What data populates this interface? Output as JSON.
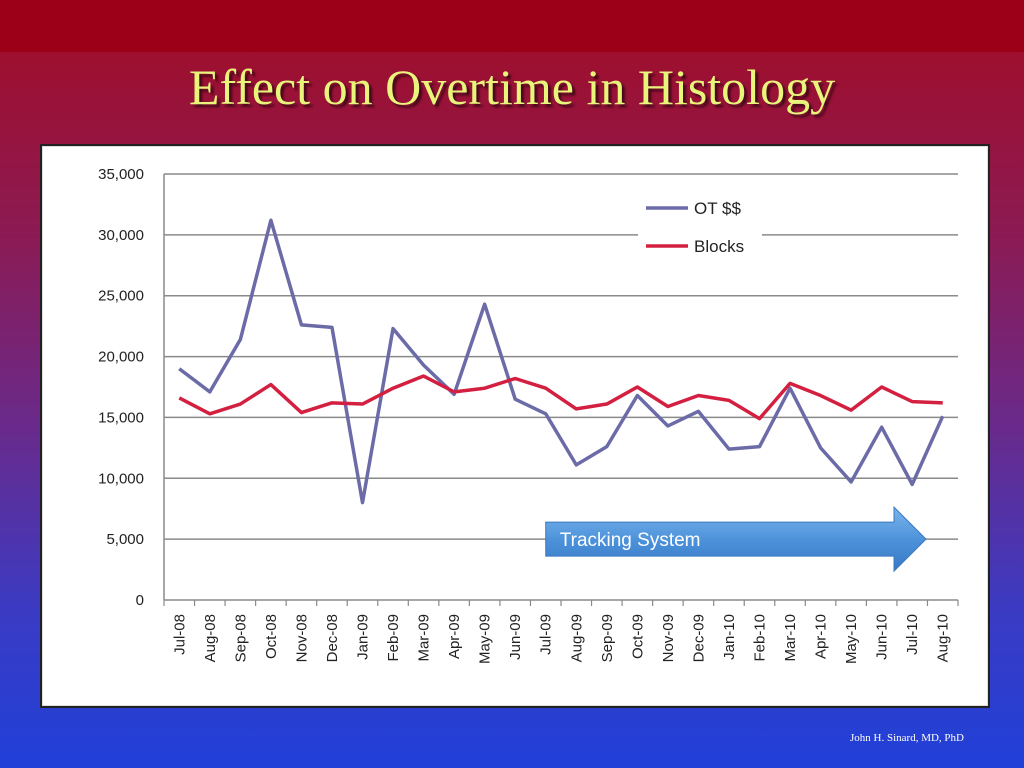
{
  "slide": {
    "title": "Effect on Overtime in Histology",
    "credit": "John H. Sinard, MD, PhD"
  },
  "chart_data": {
    "type": "line",
    "categories": [
      "Jul-08",
      "Aug-08",
      "Sep-08",
      "Oct-08",
      "Nov-08",
      "Dec-08",
      "Jan-09",
      "Feb-09",
      "Mar-09",
      "Apr-09",
      "May-09",
      "Jun-09",
      "Jul-09",
      "Aug-09",
      "Sep-09",
      "Oct-09",
      "Nov-09",
      "Dec-09",
      "Jan-10",
      "Feb-10",
      "Mar-10",
      "Apr-10",
      "May-10",
      "Jun-10",
      "Jul-10",
      "Aug-10"
    ],
    "series": [
      {
        "name": "OT $$",
        "color": "#6b6ba8",
        "values": [
          19000,
          17100,
          21400,
          31200,
          22600,
          22400,
          8000,
          22300,
          19300,
          16900,
          24300,
          16500,
          15300,
          11100,
          12600,
          16800,
          14300,
          15500,
          12400,
          12600,
          17400,
          12500,
          9700,
          14200,
          9500,
          15100
        ]
      },
      {
        "name": "Blocks",
        "color": "#d42040",
        "values": [
          16600,
          15300,
          16100,
          17700,
          15400,
          16200,
          16100,
          17400,
          18400,
          17100,
          17400,
          18200,
          17400,
          15700,
          16100,
          17500,
          15900,
          16800,
          16400,
          14900,
          17800,
          16800,
          15600,
          17500,
          16300,
          16200
        ]
      }
    ],
    "ylim": [
      0,
      35000
    ],
    "yticks": [
      "0",
      "5,000",
      "10,000",
      "15,000",
      "20,000",
      "25,000",
      "30,000",
      "35,000"
    ],
    "grid": true,
    "legend": "top-right",
    "annotation": {
      "text": "Tracking System",
      "color": "#4a90d9"
    }
  }
}
